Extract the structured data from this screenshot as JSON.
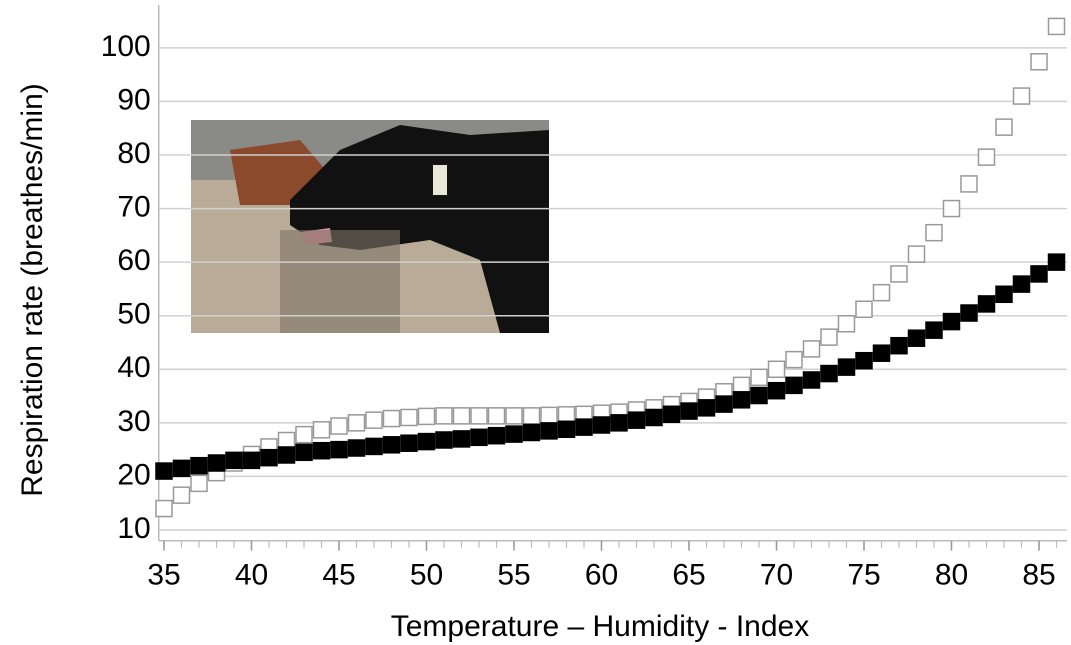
{
  "chart_data": {
    "type": "scatter",
    "x_label": "Temperature – Humidity - Index",
    "y_label": "Respiration rate (breathes/min)",
    "x": [
      35,
      36,
      37,
      38,
      39,
      40,
      41,
      42,
      43,
      44,
      45,
      46,
      47,
      48,
      49,
      50,
      51,
      52,
      53,
      54,
      55,
      56,
      57,
      58,
      59,
      60,
      61,
      62,
      63,
      64,
      65,
      66,
      67,
      68,
      69,
      70,
      71,
      72,
      73,
      74,
      75,
      76,
      77,
      78,
      79,
      80,
      81,
      82,
      83,
      84,
      85,
      86
    ],
    "series": [
      {
        "marker": "hollow",
        "color": "#999999",
        "values": [
          14,
          16.5,
          18.7,
          20.7,
          22.5,
          24.1,
          25.5,
          26.7,
          27.8,
          28.7,
          29.4,
          30,
          30.5,
          30.8,
          31,
          31.2,
          31.3,
          31.3,
          31.3,
          31.3,
          31.3,
          31.3,
          31.4,
          31.5,
          31.6,
          31.8,
          32,
          32.4,
          32.8,
          33.4,
          34,
          34.8,
          35.8,
          37,
          38.5,
          40,
          41.8,
          43.8,
          46,
          48.5,
          51.2,
          54.3,
          57.8,
          61.5,
          65.5,
          70,
          74.6,
          79.6,
          85.2,
          91,
          97.4,
          104
        ]
      },
      {
        "marker": "filled",
        "color": "#000000",
        "values": [
          21,
          21.5,
          22,
          22.5,
          23,
          23,
          23.5,
          24,
          24.5,
          24.8,
          25,
          25.3,
          25.6,
          25.9,
          26.2,
          26.5,
          26.8,
          27,
          27.3,
          27.6,
          27.9,
          28.2,
          28.5,
          28.8,
          29.2,
          29.6,
          30,
          30.5,
          31,
          31.6,
          32.2,
          32.8,
          33.5,
          34.3,
          35.1,
          36,
          37,
          38,
          39.2,
          40.4,
          41.6,
          43,
          44.4,
          45.8,
          47.3,
          48.9,
          50.5,
          52.2,
          54,
          55.9,
          57.8,
          60
        ]
      }
    ],
    "xlim": [
      34.7,
      86.6
    ],
    "ylim": [
      8,
      108
    ],
    "xticks": [
      35,
      40,
      45,
      50,
      55,
      60,
      65,
      70,
      75,
      80,
      85
    ],
    "yticks": [
      10,
      20,
      30,
      40,
      50,
      60,
      70,
      80,
      90,
      100
    ],
    "grid": true
  }
}
